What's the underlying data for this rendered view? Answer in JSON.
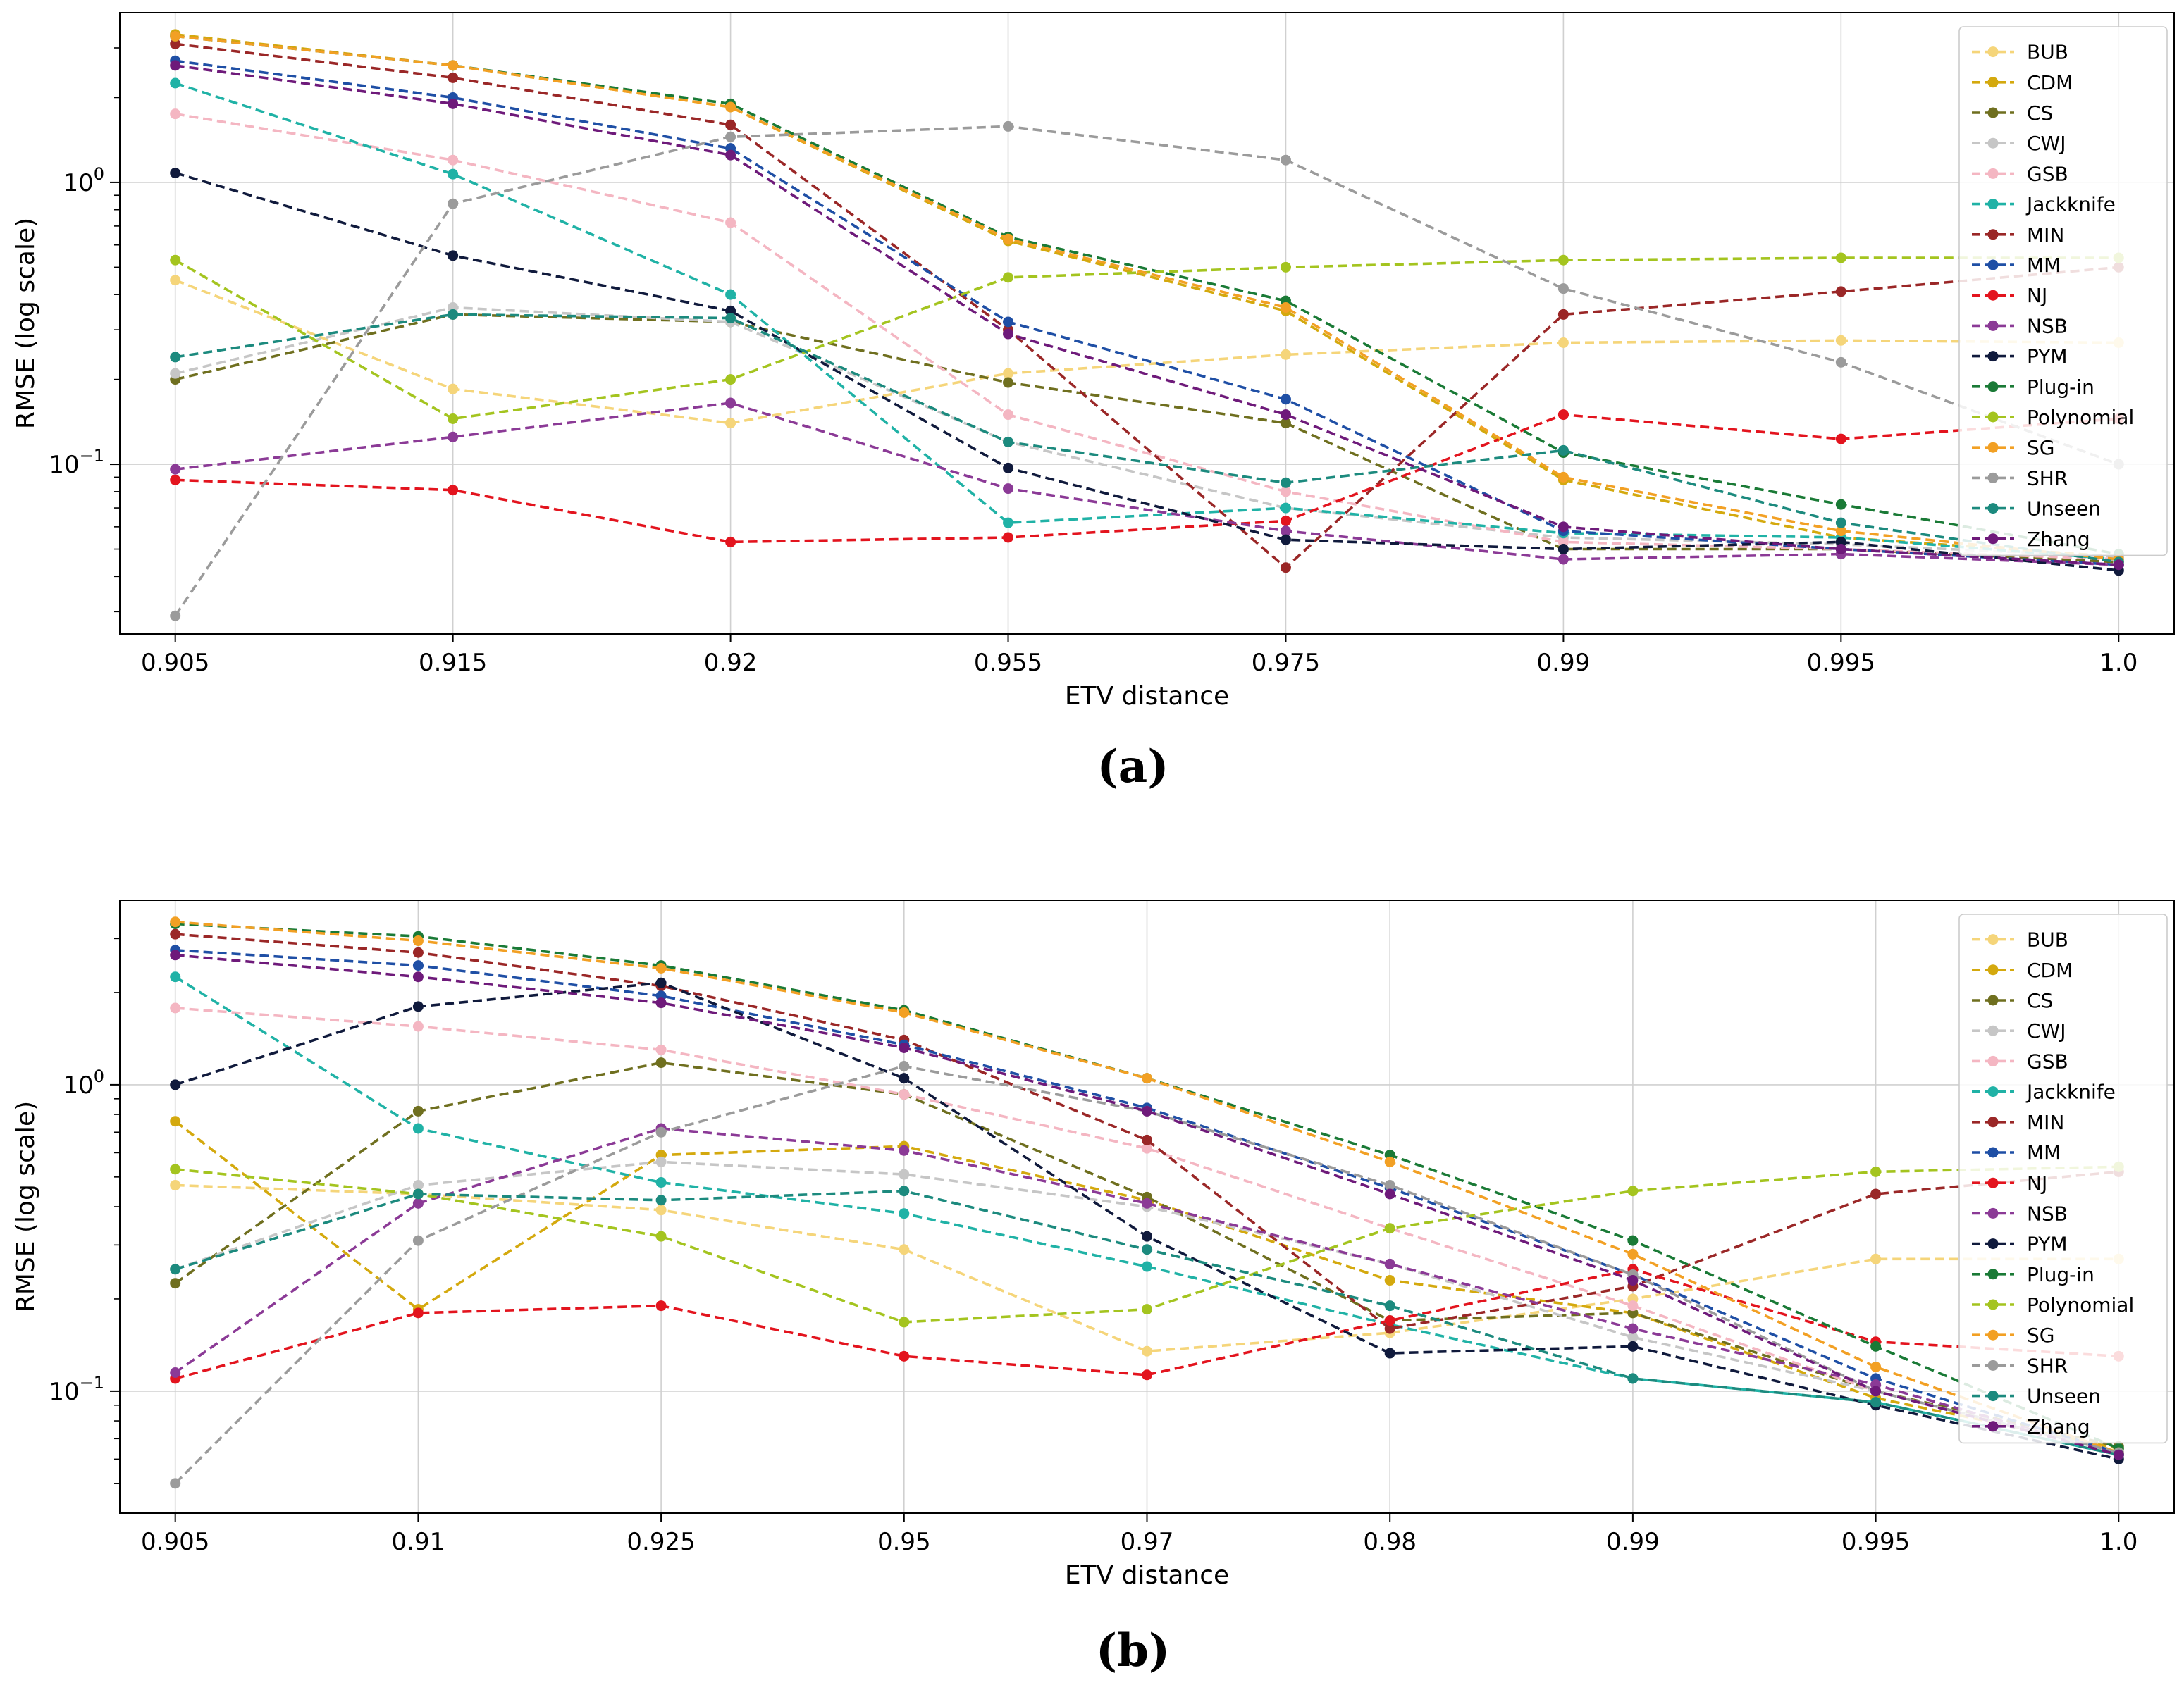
{
  "chart_data": [
    {
      "type": "line",
      "panel_label": "(a)",
      "yscale": "log",
      "xlabel": "ETV distance",
      "ylabel": "RMSE (log scale)",
      "ylim": [
        0.025,
        4.0
      ],
      "yticks": [
        {
          "value": 0.1,
          "base": "10",
          "exp": "−1"
        },
        {
          "value": 1,
          "base": "10",
          "exp": "0"
        }
      ],
      "grid": true,
      "legend_position": "top-right",
      "categories": [
        "0.905",
        "0.915",
        "0.92",
        "0.955",
        "0.975",
        "0.99",
        "0.995",
        "1.0"
      ],
      "series": [
        {
          "name": "BUB",
          "color": "#f5d57a",
          "values": [
            0.45,
            0.185,
            0.14,
            0.21,
            0.245,
            0.27,
            0.275,
            0.27
          ]
        },
        {
          "name": "CDM",
          "color": "#d4a90e",
          "values": [
            3.35,
            2.6,
            1.85,
            0.62,
            0.35,
            0.088,
            0.055,
            0.047
          ]
        },
        {
          "name": "CS",
          "color": "#6f6f1f",
          "values": [
            0.2,
            0.34,
            0.32,
            0.195,
            0.14,
            0.05,
            0.05,
            0.045
          ]
        },
        {
          "name": "CWJ",
          "color": "#c6c6c6",
          "values": [
            0.21,
            0.36,
            0.32,
            0.12,
            0.07,
            0.055,
            0.052,
            0.047
          ]
        },
        {
          "name": "GSB",
          "color": "#f4b6c2",
          "values": [
            1.75,
            1.2,
            0.72,
            0.15,
            0.08,
            0.053,
            0.05,
            0.046
          ]
        },
        {
          "name": "Jackknife",
          "color": "#20b2a6",
          "values": [
            2.25,
            1.07,
            0.4,
            0.062,
            0.07,
            0.057,
            0.055,
            0.046
          ]
        },
        {
          "name": "MIN",
          "color": "#9a2727",
          "values": [
            3.1,
            2.35,
            1.6,
            0.3,
            0.043,
            0.34,
            0.41,
            0.5
          ]
        },
        {
          "name": "MM",
          "color": "#1f4fa5",
          "values": [
            2.7,
            2.0,
            1.32,
            0.32,
            0.17,
            0.058,
            0.05,
            0.044
          ]
        },
        {
          "name": "NJ",
          "color": "#e3141e",
          "values": [
            0.088,
            0.081,
            0.053,
            0.055,
            0.063,
            0.15,
            0.123,
            0.145
          ]
        },
        {
          "name": "NSB",
          "color": "#8b3a96",
          "values": [
            0.096,
            0.125,
            0.165,
            0.082,
            0.058,
            0.046,
            0.048,
            0.044
          ]
        },
        {
          "name": "PYM",
          "color": "#101a3c",
          "values": [
            1.08,
            0.55,
            0.35,
            0.097,
            0.054,
            0.05,
            0.053,
            0.042
          ]
        },
        {
          "name": "Plug-in",
          "color": "#1a7a36",
          "values": [
            3.3,
            2.6,
            1.9,
            0.64,
            0.38,
            0.11,
            0.072,
            0.048
          ]
        },
        {
          "name": "Polynomial",
          "color": "#a4c41f",
          "values": [
            0.53,
            0.145,
            0.2,
            0.46,
            0.5,
            0.53,
            0.54,
            0.54
          ]
        },
        {
          "name": "SG",
          "color": "#f2a024",
          "values": [
            3.3,
            2.6,
            1.85,
            0.63,
            0.36,
            0.09,
            0.058,
            0.046
          ]
        },
        {
          "name": "SHR",
          "color": "#9b9b9b",
          "values": [
            0.029,
            0.84,
            1.45,
            1.58,
            1.2,
            0.42,
            0.23,
            0.1
          ]
        },
        {
          "name": "Unseen",
          "color": "#1c8a7e",
          "values": [
            0.24,
            0.34,
            0.33,
            0.12,
            0.086,
            0.112,
            0.062,
            0.045
          ]
        },
        {
          "name": "Zhang",
          "color": "#6e1a7a",
          "values": [
            2.6,
            1.9,
            1.25,
            0.29,
            0.15,
            0.06,
            0.05,
            0.044
          ]
        }
      ]
    },
    {
      "type": "line",
      "panel_label": "(b)",
      "yscale": "log",
      "xlabel": "ETV distance",
      "ylabel": "RMSE (log scale)",
      "ylim": [
        0.04,
        4.0
      ],
      "yticks": [
        {
          "value": 0.1,
          "base": "10",
          "exp": "−1"
        },
        {
          "value": 1,
          "base": "10",
          "exp": "0"
        }
      ],
      "grid": true,
      "legend_position": "top-right",
      "categories": [
        "0.905",
        "0.91",
        "0.925",
        "0.95",
        "0.97",
        "0.98",
        "0.99",
        "0.995",
        "1.0"
      ],
      "series": [
        {
          "name": "BUB",
          "color": "#f5d57a",
          "values": [
            0.47,
            0.44,
            0.39,
            0.29,
            0.135,
            0.155,
            0.2,
            0.27,
            0.27
          ]
        },
        {
          "name": "CDM",
          "color": "#d4a90e",
          "values": [
            0.76,
            0.185,
            0.59,
            0.63,
            0.42,
            0.23,
            0.18,
            0.095,
            0.065
          ]
        },
        {
          "name": "CS",
          "color": "#6f6f1f",
          "values": [
            0.225,
            0.82,
            1.18,
            0.93,
            0.43,
            0.17,
            0.18,
            0.1,
            0.066
          ]
        },
        {
          "name": "CWJ",
          "color": "#c6c6c6",
          "values": [
            0.25,
            0.47,
            0.56,
            0.51,
            0.4,
            0.26,
            0.15,
            0.1,
            0.063
          ]
        },
        {
          "name": "GSB",
          "color": "#f4b6c2",
          "values": [
            1.78,
            1.55,
            1.3,
            0.93,
            0.62,
            0.34,
            0.19,
            0.1,
            0.063
          ]
        },
        {
          "name": "Jackknife",
          "color": "#20b2a6",
          "values": [
            2.25,
            0.72,
            0.48,
            0.38,
            0.255,
            0.165,
            0.11,
            0.092,
            0.062
          ]
        },
        {
          "name": "MIN",
          "color": "#9a2727",
          "values": [
            3.1,
            2.7,
            2.1,
            1.4,
            0.66,
            0.16,
            0.22,
            0.44,
            0.52
          ]
        },
        {
          "name": "MM",
          "color": "#1f4fa5",
          "values": [
            2.75,
            2.45,
            1.95,
            1.35,
            0.84,
            0.46,
            0.24,
            0.11,
            0.063
          ]
        },
        {
          "name": "NJ",
          "color": "#e3141e",
          "values": [
            0.11,
            0.18,
            0.19,
            0.13,
            0.113,
            0.17,
            0.25,
            0.145,
            0.13
          ]
        },
        {
          "name": "NSB",
          "color": "#8b3a96",
          "values": [
            0.115,
            0.41,
            0.72,
            0.61,
            0.41,
            0.26,
            0.16,
            0.105,
            0.062
          ]
        },
        {
          "name": "PYM",
          "color": "#101a3c",
          "values": [
            1.0,
            1.8,
            2.15,
            1.05,
            0.32,
            0.133,
            0.14,
            0.09,
            0.06
          ]
        },
        {
          "name": "Plug-in",
          "color": "#1a7a36",
          "values": [
            3.35,
            3.05,
            2.45,
            1.75,
            1.05,
            0.59,
            0.31,
            0.14,
            0.065
          ]
        },
        {
          "name": "Polynomial",
          "color": "#a4c41f",
          "values": [
            0.53,
            0.44,
            0.32,
            0.168,
            0.185,
            0.34,
            0.45,
            0.52,
            0.54
          ]
        },
        {
          "name": "SG",
          "color": "#f2a024",
          "values": [
            3.4,
            2.95,
            2.4,
            1.72,
            1.05,
            0.56,
            0.28,
            0.12,
            0.063
          ]
        },
        {
          "name": "SHR",
          "color": "#9b9b9b",
          "values": [
            0.05,
            0.31,
            0.7,
            1.15,
            0.82,
            0.47,
            0.24,
            0.1,
            0.063
          ]
        },
        {
          "name": "Unseen",
          "color": "#1c8a7e",
          "values": [
            0.25,
            0.44,
            0.42,
            0.45,
            0.29,
            0.19,
            0.11,
            0.092,
            0.062
          ]
        },
        {
          "name": "Zhang",
          "color": "#6e1a7a",
          "values": [
            2.65,
            2.25,
            1.85,
            1.32,
            0.82,
            0.44,
            0.23,
            0.1,
            0.062
          ]
        }
      ]
    }
  ]
}
